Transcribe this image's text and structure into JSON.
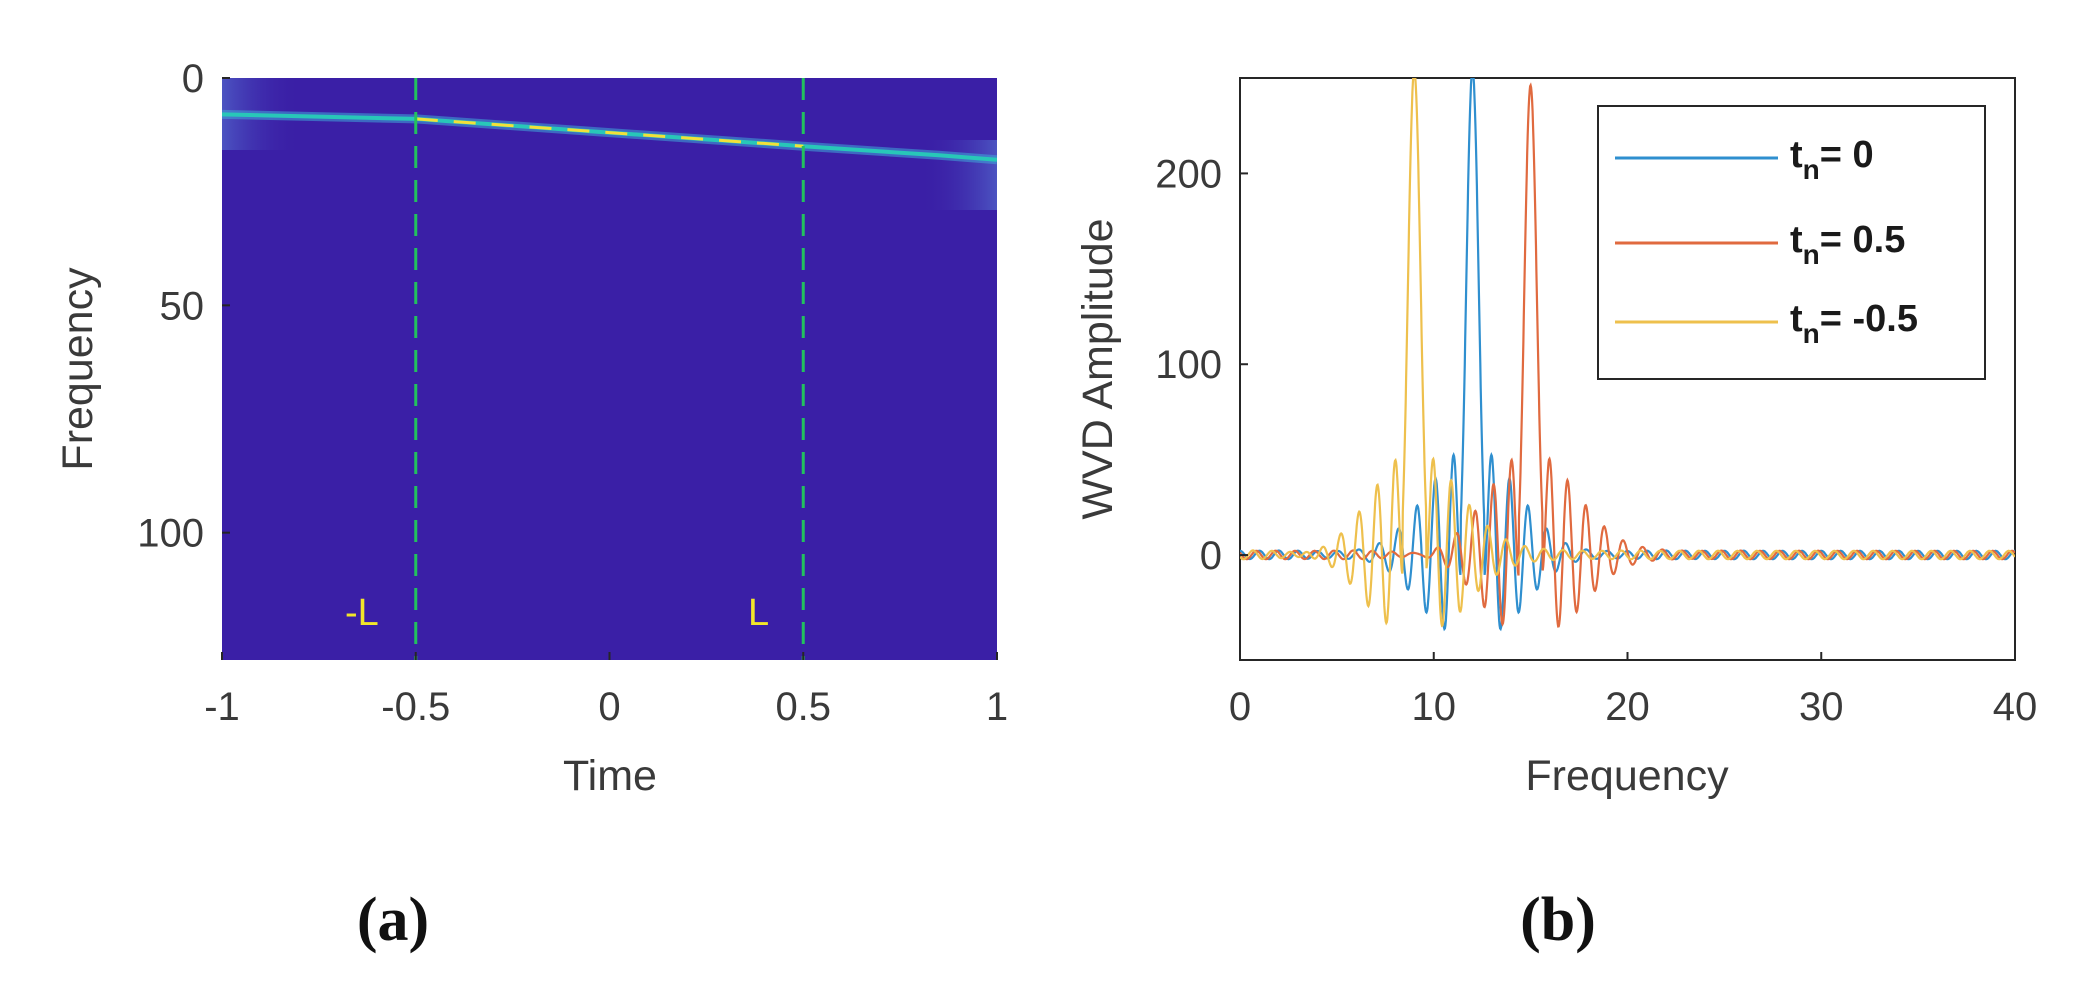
{
  "chart_data": [
    {
      "type": "heatmap",
      "panel_label": "(a)",
      "xlabel": "Time",
      "ylabel": "Frequency",
      "xlim": [
        -1,
        1
      ],
      "ylim": [
        0,
        128
      ],
      "y_reversed": true,
      "xticks": [
        "-1",
        "-0.5",
        "0",
        "0.5",
        "1"
      ],
      "yticks": [
        "0",
        "50",
        "100"
      ],
      "background_color": "#3a1fa6",
      "ridge": {
        "x": [
          -1,
          -0.5,
          0,
          0.5,
          0.85,
          1
        ],
        "y": [
          8,
          9,
          12,
          15,
          17,
          18
        ]
      },
      "markers": [
        {
          "x": -0.5,
          "label": "-L",
          "color": "#22c15e"
        },
        {
          "x": 0.5,
          "label": "L",
          "color": "#22c15e"
        }
      ]
    },
    {
      "type": "line",
      "panel_label": "(b)",
      "xlabel": "Frequency",
      "ylabel": "WVD Amplitude",
      "xlim": [
        0,
        40
      ],
      "ylim": [
        -55,
        250
      ],
      "xticks": [
        "0",
        "10",
        "20",
        "30",
        "40"
      ],
      "yticks": [
        "0",
        "100",
        "200"
      ],
      "legend_position": "top-right",
      "series": [
        {
          "name": "t",
          "sub": "n",
          "suffix": "= 0",
          "color": "#2f8fcf",
          "peak_x": 12,
          "peak_y": 252
        },
        {
          "name": "t",
          "sub": "n",
          "suffix": "= 0.5",
          "color": "#e06a3f",
          "peak_x": 15,
          "peak_y": 245
        },
        {
          "name": "t",
          "sub": "n",
          "suffix": "= -0.5",
          "color": "#eec04d",
          "peak_x": 9,
          "peak_y": 255
        }
      ]
    }
  ]
}
